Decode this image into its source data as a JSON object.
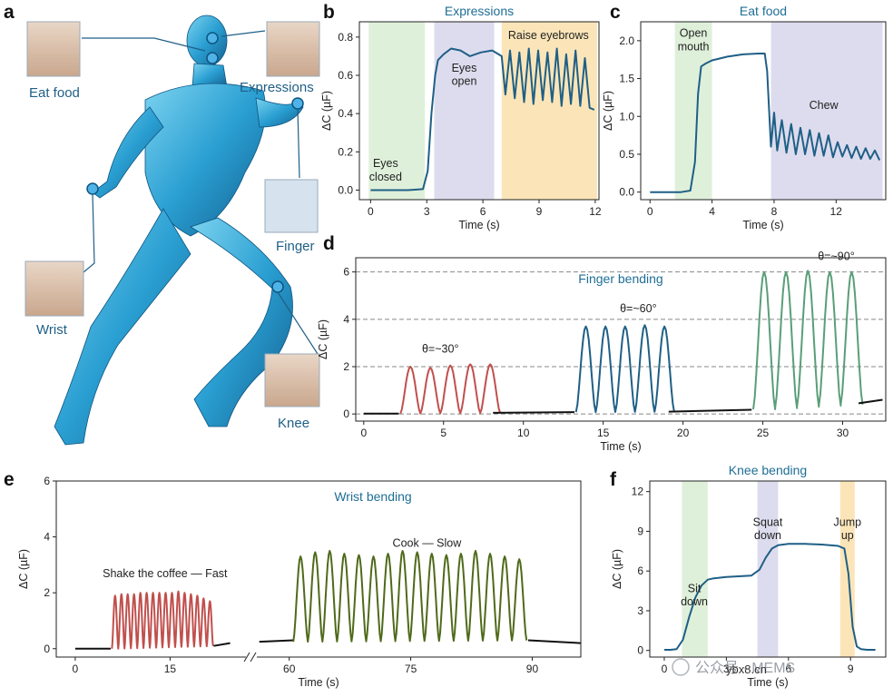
{
  "figure": {
    "panel_labels": [
      "a",
      "b",
      "c",
      "d",
      "e",
      "f"
    ],
    "body_labels": {
      "eat_food": "Eat food",
      "expressions": "Expressions",
      "finger": "Finger",
      "wrist": "Wrist",
      "knee": "Knee"
    },
    "watermark": {
      "line1": "公众号 · MEMS",
      "line2": "ybx8.cn"
    },
    "colors": {
      "blue": "#1f5f86",
      "red": "#c0504d",
      "green": "#5a9e78",
      "olive": "#4f6a1a",
      "title": "#1f6e95",
      "black": "#111111"
    }
  },
  "chart_data": [
    {
      "id": "b",
      "type": "line",
      "title": "Expressions",
      "xlabel": "Time (s)",
      "ylabel": "ΔC (µF)",
      "xlim": [
        -0.6,
        12.2
      ],
      "ylim": [
        -0.05,
        0.88
      ],
      "xticks": [
        0,
        3,
        6,
        9,
        12
      ],
      "yticks": [
        0.0,
        0.2,
        0.4,
        0.6,
        0.8
      ],
      "yticklabels": [
        "0.0",
        "0.2",
        "0.4",
        "0.6",
        "0.8"
      ],
      "regions": [
        {
          "label": "Eyes closed",
          "x": [
            -0.1,
            2.9
          ],
          "color": "#dff0da"
        },
        {
          "label": "Eyes open",
          "x": [
            3.4,
            6.6
          ],
          "color": "#dddcee"
        },
        {
          "label": "Raise eyebrows",
          "x": [
            7.0,
            12.1
          ],
          "color": "#fbe5b8"
        }
      ],
      "series": [
        {
          "name": "Expressions",
          "color": "#1f5f86",
          "x": [
            0,
            1,
            2,
            2.8,
            3.05,
            3.25,
            3.45,
            3.6,
            3.9,
            4.3,
            4.8,
            5.3,
            5.9,
            6.5,
            7.0,
            7.2,
            7.45,
            7.7,
            7.95,
            8.2,
            8.45,
            8.7,
            8.95,
            9.2,
            9.45,
            9.7,
            9.95,
            10.2,
            10.45,
            10.7,
            10.95,
            11.2,
            11.45,
            11.7,
            11.95
          ],
          "y": [
            0.0,
            0.0,
            0.0,
            0.005,
            0.1,
            0.4,
            0.6,
            0.68,
            0.71,
            0.74,
            0.73,
            0.7,
            0.72,
            0.73,
            0.7,
            0.5,
            0.73,
            0.48,
            0.72,
            0.46,
            0.74,
            0.45,
            0.73,
            0.47,
            0.72,
            0.46,
            0.74,
            0.44,
            0.71,
            0.45,
            0.73,
            0.44,
            0.69,
            0.43,
            0.42
          ]
        }
      ],
      "annotations": [
        {
          "text": "Eyes",
          "x": 0.8,
          "y": 0.12
        },
        {
          "text": "closed",
          "x": 0.8,
          "y": 0.05
        },
        {
          "text": "Eyes",
          "x": 5.0,
          "y": 0.62
        },
        {
          "text": "open",
          "x": 5.0,
          "y": 0.55
        },
        {
          "text": "Raise eyebrows",
          "x": 9.5,
          "y": 0.79
        }
      ]
    },
    {
      "id": "c",
      "type": "line",
      "title": "Eat food",
      "xlabel": "Time (s)",
      "ylabel": "ΔC (µF)",
      "xlim": [
        -0.6,
        15.2
      ],
      "ylim": [
        -0.1,
        2.25
      ],
      "xticks": [
        0,
        4,
        8,
        12
      ],
      "yticks": [
        0.0,
        0.5,
        1.0,
        1.5,
        2.0
      ],
      "yticklabels": [
        "0.0",
        "0.5",
        "1.0",
        "1.5",
        "2.0"
      ],
      "regions": [
        {
          "label": "Open mouth",
          "x": [
            1.6,
            4.0
          ],
          "color": "#dff0da"
        },
        {
          "label": "Chew",
          "x": [
            7.8,
            15.0
          ],
          "color": "#dddcee"
        }
      ],
      "series": [
        {
          "name": "Eat food",
          "color": "#1f5f86",
          "x": [
            0,
            1,
            2,
            2.6,
            2.9,
            3.1,
            3.3,
            3.6,
            4,
            5,
            6,
            7,
            7.4,
            7.55,
            7.8,
            8.0,
            8.2,
            8.5,
            8.8,
            9.1,
            9.4,
            9.7,
            10.0,
            10.3,
            10.6,
            10.9,
            11.2,
            11.5,
            11.8,
            12.1,
            12.4,
            12.7,
            13.0,
            13.3,
            13.6,
            13.9,
            14.2,
            14.5,
            14.8
          ],
          "y": [
            0.0,
            0.0,
            0.0,
            0.02,
            0.4,
            1.3,
            1.66,
            1.7,
            1.74,
            1.79,
            1.82,
            1.83,
            1.83,
            1.6,
            0.6,
            1.05,
            0.55,
            0.95,
            0.52,
            0.9,
            0.5,
            0.85,
            0.5,
            0.82,
            0.48,
            0.78,
            0.48,
            0.75,
            0.46,
            0.66,
            0.47,
            0.62,
            0.45,
            0.6,
            0.44,
            0.58,
            0.44,
            0.55,
            0.42
          ]
        }
      ],
      "annotations": [
        {
          "text": "Open",
          "x": 2.8,
          "y": 2.05
        },
        {
          "text": "mouth",
          "x": 2.8,
          "y": 1.87
        },
        {
          "text": "Chew",
          "x": 11.2,
          "y": 1.1
        }
      ]
    },
    {
      "id": "d",
      "type": "line",
      "title": "Finger bending",
      "xlabel": "Time (s)",
      "ylabel": "ΔC (µF)",
      "xlim": [
        -0.5,
        32.7
      ],
      "ylim": [
        -0.3,
        6.6
      ],
      "xticks": [
        0,
        5,
        10,
        15,
        20,
        25,
        30
      ],
      "yticks": [
        0,
        2,
        4,
        6
      ],
      "yticklabels": [
        "0",
        "2",
        "4",
        "6"
      ],
      "hlines": [
        0,
        2,
        4,
        6
      ],
      "segments": [
        {
          "name": "baseline-1",
          "color": "#111111",
          "x": [
            0,
            2.2
          ],
          "y": [
            0.02,
            0.02
          ]
        },
        {
          "name": "θ=~30°",
          "color": "#c0504d",
          "start": 2.3,
          "peaks": [
            2.0,
            1.95,
            2.05,
            2.1,
            2.1
          ],
          "period": 1.25,
          "base": 0.02,
          "end_base": 0.05
        },
        {
          "name": "baseline-2",
          "color": "#111111",
          "x": [
            8.1,
            13.2
          ],
          "y": [
            0.05,
            0.08
          ]
        },
        {
          "name": "θ=~60°",
          "color": "#1f5f86",
          "start": 13.3,
          "peaks": [
            3.7,
            3.7,
            3.7,
            3.75,
            3.7
          ],
          "period": 1.23,
          "base": 0.08,
          "end_base": 0.1
        },
        {
          "name": "baseline-3",
          "color": "#111111",
          "x": [
            19.1,
            24.3
          ],
          "y": [
            0.1,
            0.18
          ]
        },
        {
          "name": "θ=~90°",
          "color": "#5a9e78",
          "start": 24.4,
          "peaks": [
            6.0,
            6.0,
            6.05,
            6.0,
            6.0
          ],
          "period": 1.37,
          "base": 0.2,
          "end_base": 0.45
        },
        {
          "name": "baseline-4",
          "color": "#111111",
          "x": [
            31.0,
            32.5
          ],
          "y": [
            0.45,
            0.6
          ]
        }
      ],
      "annotations": [
        {
          "text": "θ=~30°",
          "x": 4.8,
          "y": 2.6,
          "color": "#c0504d"
        },
        {
          "text": "θ=~60°",
          "x": 17.2,
          "y": 4.3,
          "color": "#1f5f86"
        },
        {
          "text": "θ=~90°",
          "x": 29.6,
          "y": 6.5,
          "color": "#5a9e78"
        }
      ]
    },
    {
      "id": "e",
      "type": "line",
      "title": "Wrist bending",
      "xlabel": "Time (s)",
      "ylabel": "ΔC (µF)",
      "broken_axis": true,
      "ylim": [
        -0.3,
        6.0
      ],
      "xticks": [
        0,
        15,
        60,
        75,
        90
      ],
      "yticks": [
        0,
        2,
        4,
        6
      ],
      "yticklabels": [
        "0",
        "2",
        "4",
        "6"
      ],
      "segments": [
        {
          "name": "baseline-1",
          "color": "#111111",
          "x": [
            0,
            5.6
          ],
          "y": [
            0.0,
            0.0
          ]
        },
        {
          "name": "Shake the coffee — Fast",
          "color": "#c0504d",
          "start": 5.8,
          "peaks": [
            1.9,
            1.95,
            1.95,
            1.95,
            2.0,
            2.0,
            2.0,
            2.0,
            2.0,
            2.0,
            2.05,
            2.0,
            1.95,
            1.9,
            1.8,
            1.7
          ],
          "period": 1.0,
          "base": 0.0,
          "end_base": 0.1
        },
        {
          "name": "baseline-2",
          "color": "#111111",
          "x": [
            21.9,
            24.5
          ],
          "y": [
            0.1,
            0.2
          ]
        },
        {
          "name": "baseline-3",
          "color": "#111111",
          "x": [
            56.3,
            60.5
          ],
          "y": [
            0.25,
            0.3
          ]
        },
        {
          "name": "Cook — Slow",
          "color": "#4f6a1a",
          "start": 60.5,
          "peaks": [
            3.3,
            3.45,
            3.5,
            3.4,
            3.35,
            3.3,
            3.4,
            3.5,
            3.45,
            3.4,
            3.35,
            3.4,
            3.5,
            3.4,
            3.3,
            3.2
          ],
          "period": 1.8,
          "base": 0.25,
          "end_base": 0.3
        },
        {
          "name": "baseline-4",
          "color": "#111111",
          "x": [
            89.5,
            96.0
          ],
          "y": [
            0.3,
            0.2
          ]
        }
      ],
      "annotations": [
        {
          "text": "Shake the coffee — Fast",
          "x": 14.2,
          "y": 2.55,
          "color": "#c0504d"
        },
        {
          "text": "Cook — Slow",
          "x": 77.0,
          "y": 3.65,
          "color": "#5a9e78"
        }
      ]
    },
    {
      "id": "f",
      "type": "line",
      "title": "Knee bending",
      "xlabel": "Time (s)",
      "ylabel": "ΔC (µF)",
      "xlim": [
        -0.7,
        10.7
      ],
      "ylim": [
        -0.5,
        12.8
      ],
      "xticks": [
        0,
        3,
        6,
        9
      ],
      "yticks": [
        0,
        3,
        6,
        9,
        12
      ],
      "yticklabels": [
        "0",
        "3",
        "6",
        "9",
        "12"
      ],
      "regions": [
        {
          "label": "Sit down",
          "x": [
            0.85,
            2.1
          ],
          "color": "#dff0da"
        },
        {
          "label": "Squat down",
          "x": [
            4.5,
            5.5
          ],
          "color": "#dddcee"
        },
        {
          "label": "Jump up",
          "x": [
            8.5,
            9.2
          ],
          "color": "#fbe5b8"
        }
      ],
      "series": [
        {
          "name": "Knee bending",
          "color": "#1f5f86",
          "x": [
            0,
            0.3,
            0.6,
            0.9,
            1.2,
            1.5,
            1.8,
            2.1,
            2.4,
            3,
            3.6,
            4.2,
            4.6,
            4.9,
            5.2,
            5.5,
            6,
            6.8,
            7.6,
            8.4,
            8.7,
            8.9,
            9.1,
            9.3,
            9.5,
            9.8,
            10.2
          ],
          "y": [
            0.05,
            0.05,
            0.1,
            0.8,
            2.5,
            4.0,
            4.9,
            5.35,
            5.45,
            5.55,
            5.6,
            5.65,
            6.1,
            7.0,
            7.7,
            7.95,
            8.05,
            8.05,
            8.0,
            7.9,
            7.7,
            5.8,
            1.8,
            0.3,
            0.1,
            0.05,
            0.05
          ]
        }
      ],
      "annotations": [
        {
          "text": "Sit",
          "x": 1.45,
          "y": 4.4
        },
        {
          "text": "down",
          "x": 1.45,
          "y": 3.4
        },
        {
          "text": "Squat",
          "x": 5.0,
          "y": 9.4
        },
        {
          "text": "down",
          "x": 5.0,
          "y": 8.4
        },
        {
          "text": "Jump",
          "x": 8.85,
          "y": 9.4
        },
        {
          "text": "up",
          "x": 8.85,
          "y": 8.4
        }
      ]
    }
  ]
}
